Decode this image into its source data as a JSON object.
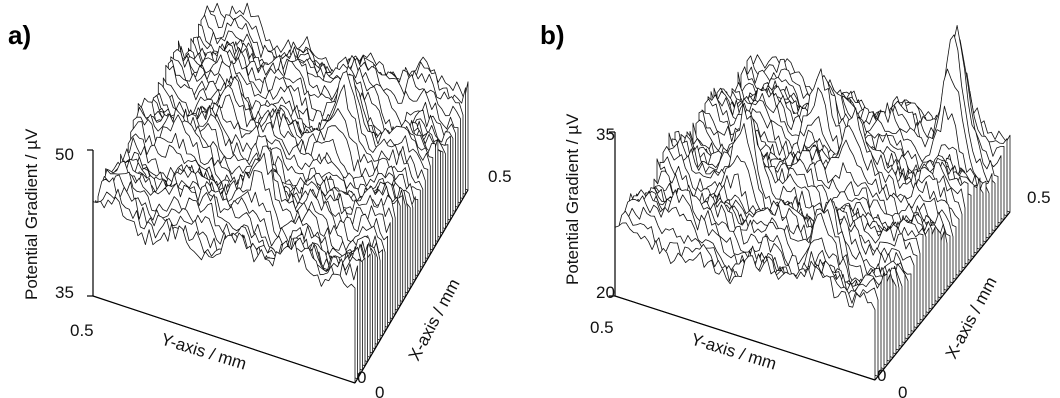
{
  "chart_data": [
    {
      "type": "surface",
      "panel_label": "a)",
      "zlabel": "Potential Gradient / µV",
      "ylabel": "Y-axis / mm",
      "xlabel": "X-axis / mm",
      "zlim": [
        35,
        50
      ],
      "z_ticks": [
        "50",
        "35"
      ],
      "y_ticks": [
        "0.5",
        "0"
      ],
      "x_ticks": [
        "0",
        "0.5"
      ],
      "xlim": [
        0,
        0.5
      ],
      "ylim": [
        0,
        0.5
      ],
      "baseline_value": 43,
      "features": [
        {
          "x": 0.32,
          "y": 0.15,
          "height": 5
        },
        {
          "x": 0.28,
          "y": 0.35,
          "height": 4
        },
        {
          "x": 0.12,
          "y": 0.22,
          "height": 3.5
        },
        {
          "x": 0.42,
          "y": 0.1,
          "height": -4
        },
        {
          "x": 0.18,
          "y": 0.42,
          "height": 3
        },
        {
          "x": 0.05,
          "y": 0.3,
          "height": 2.5
        }
      ]
    },
    {
      "type": "surface",
      "panel_label": "b)",
      "zlabel": "Potential Gradient / µV",
      "ylabel": "Y-axis / mm",
      "xlabel": "X-axis / mm",
      "zlim": [
        20,
        35
      ],
      "z_ticks": [
        "35",
        "20"
      ],
      "y_ticks": [
        "0.5",
        "0"
      ],
      "x_ticks": [
        "0",
        "0.5"
      ],
      "xlim": [
        0,
        0.5
      ],
      "ylim": [
        0,
        0.5
      ],
      "baseline_value": 26,
      "features": [
        {
          "x": 0.45,
          "y": 0.08,
          "height": 9
        },
        {
          "x": 0.2,
          "y": 0.35,
          "height": 6
        },
        {
          "x": 0.3,
          "y": 0.2,
          "height": 5
        },
        {
          "x": 0.1,
          "y": 0.15,
          "height": 4
        },
        {
          "x": 0.38,
          "y": 0.3,
          "height": 4
        },
        {
          "x": 0.05,
          "y": 0.4,
          "height": 3
        }
      ]
    }
  ]
}
